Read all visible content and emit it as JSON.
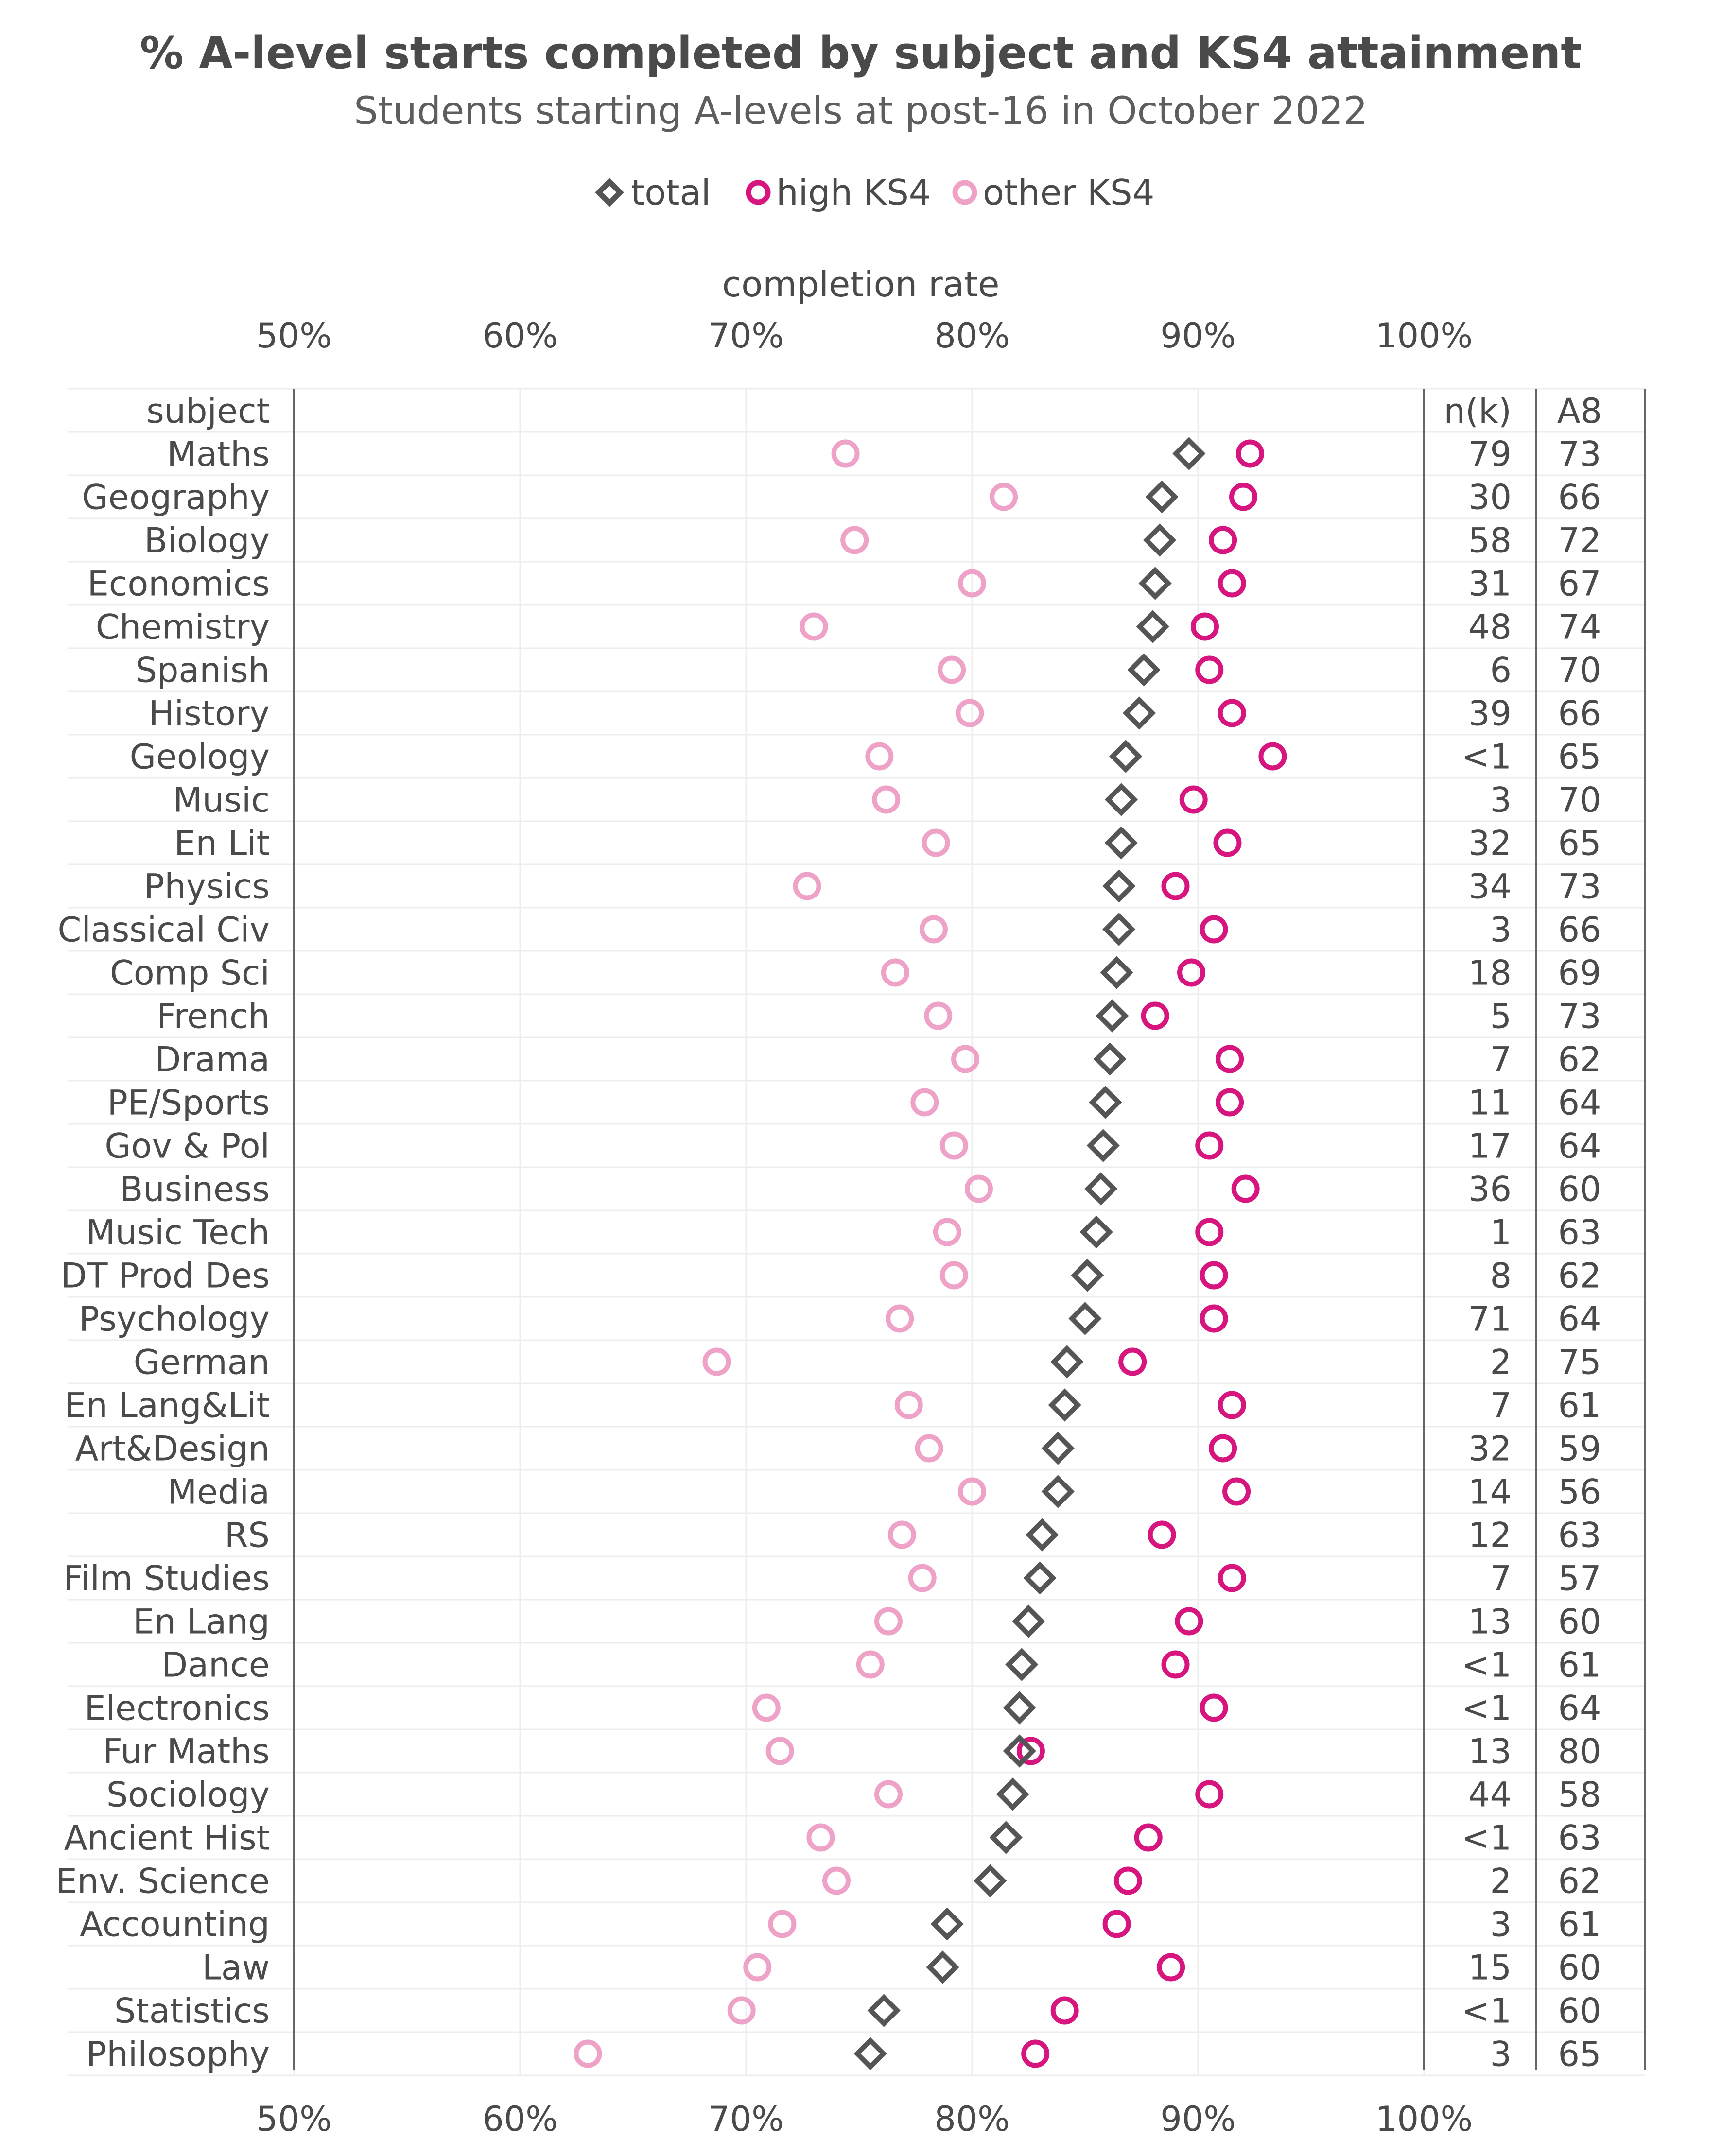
{
  "chart_data": {
    "type": "scatter",
    "title": "% A-level starts completed by subject and KS4 attainment",
    "subtitle": "Students starting A-levels at post-16 in October 2022",
    "axis_label": "completion rate",
    "x_ticks": [
      "50%",
      "60%",
      "70%",
      "80%",
      "90%",
      "100%"
    ],
    "x_tick_values": [
      50,
      60,
      70,
      80,
      90,
      100
    ],
    "xlim": [
      50,
      100
    ],
    "grid": true,
    "legend_position": "top",
    "legend": [
      {
        "key": "total",
        "label": "total",
        "marker": "diamond",
        "color": "#555555"
      },
      {
        "key": "high",
        "label": "high KS4",
        "marker": "circle",
        "color": "#d6157f"
      },
      {
        "key": "other",
        "label": "other KS4",
        "marker": "circle",
        "color": "#eea2c8"
      }
    ],
    "columns": {
      "subject": "subject",
      "n": "n(k)",
      "a8": "A8"
    },
    "rows": [
      {
        "subject": "Maths",
        "total": 89.6,
        "high": 92.3,
        "other": 74.4,
        "n": "79",
        "a8": "73"
      },
      {
        "subject": "Geography",
        "total": 88.4,
        "high": 92.0,
        "other": 81.4,
        "n": "30",
        "a8": "66"
      },
      {
        "subject": "Biology",
        "total": 88.3,
        "high": 91.1,
        "other": 74.8,
        "n": "58",
        "a8": "72"
      },
      {
        "subject": "Economics",
        "total": 88.1,
        "high": 91.5,
        "other": 80.0,
        "n": "31",
        "a8": "67"
      },
      {
        "subject": "Chemistry",
        "total": 88.0,
        "high": 90.3,
        "other": 73.0,
        "n": "48",
        "a8": "74"
      },
      {
        "subject": "Spanish",
        "total": 87.6,
        "high": 90.5,
        "other": 79.1,
        "n": "6",
        "a8": "70"
      },
      {
        "subject": "History",
        "total": 87.4,
        "high": 91.5,
        "other": 79.9,
        "n": "39",
        "a8": "66"
      },
      {
        "subject": "Geology",
        "total": 86.8,
        "high": 93.3,
        "other": 75.9,
        "n": "<1",
        "a8": "65"
      },
      {
        "subject": "Music",
        "total": 86.6,
        "high": 89.8,
        "other": 76.2,
        "n": "3",
        "a8": "70"
      },
      {
        "subject": "En Lit",
        "total": 86.6,
        "high": 91.3,
        "other": 78.4,
        "n": "32",
        "a8": "65"
      },
      {
        "subject": "Physics",
        "total": 86.5,
        "high": 89.0,
        "other": 72.7,
        "n": "34",
        "a8": "73"
      },
      {
        "subject": "Classical Civ",
        "total": 86.5,
        "high": 90.7,
        "other": 78.3,
        "n": "3",
        "a8": "66"
      },
      {
        "subject": "Comp Sci",
        "total": 86.4,
        "high": 89.7,
        "other": 76.6,
        "n": "18",
        "a8": "69"
      },
      {
        "subject": "French",
        "total": 86.2,
        "high": 88.1,
        "other": 78.5,
        "n": "5",
        "a8": "73"
      },
      {
        "subject": "Drama",
        "total": 86.1,
        "high": 91.4,
        "other": 79.7,
        "n": "7",
        "a8": "62"
      },
      {
        "subject": "PE/Sports",
        "total": 85.9,
        "high": 91.4,
        "other": 77.9,
        "n": "11",
        "a8": "64"
      },
      {
        "subject": "Gov & Pol",
        "total": 85.8,
        "high": 90.5,
        "other": 79.2,
        "n": "17",
        "a8": "64"
      },
      {
        "subject": "Business",
        "total": 85.7,
        "high": 92.1,
        "other": 80.3,
        "n": "36",
        "a8": "60"
      },
      {
        "subject": "Music Tech",
        "total": 85.5,
        "high": 90.5,
        "other": 78.9,
        "n": "1",
        "a8": "63"
      },
      {
        "subject": "DT Prod Des",
        "total": 85.1,
        "high": 90.7,
        "other": 79.2,
        "n": "8",
        "a8": "62"
      },
      {
        "subject": "Psychology",
        "total": 85.0,
        "high": 90.7,
        "other": 76.8,
        "n": "71",
        "a8": "64"
      },
      {
        "subject": "German",
        "total": 84.2,
        "high": 87.1,
        "other": 68.7,
        "n": "2",
        "a8": "75"
      },
      {
        "subject": "En Lang&Lit",
        "total": 84.1,
        "high": 91.5,
        "other": 77.2,
        "n": "7",
        "a8": "61"
      },
      {
        "subject": "Art&Design",
        "total": 83.8,
        "high": 91.1,
        "other": 78.1,
        "n": "32",
        "a8": "59"
      },
      {
        "subject": "Media",
        "total": 83.8,
        "high": 91.7,
        "other": 80.0,
        "n": "14",
        "a8": "56"
      },
      {
        "subject": "RS",
        "total": 83.1,
        "high": 88.4,
        "other": 76.9,
        "n": "12",
        "a8": "63"
      },
      {
        "subject": "Film Studies",
        "total": 83.0,
        "high": 91.5,
        "other": 77.8,
        "n": "7",
        "a8": "57"
      },
      {
        "subject": "En Lang",
        "total": 82.5,
        "high": 89.6,
        "other": 76.3,
        "n": "13",
        "a8": "60"
      },
      {
        "subject": "Dance",
        "total": 82.2,
        "high": 89.0,
        "other": 75.5,
        "n": "<1",
        "a8": "61"
      },
      {
        "subject": "Electronics",
        "total": 82.1,
        "high": 90.7,
        "other": 70.9,
        "n": "<1",
        "a8": "64"
      },
      {
        "subject": "Fur Maths",
        "total": 82.1,
        "high": 82.6,
        "other": 71.5,
        "n": "13",
        "a8": "80"
      },
      {
        "subject": "Sociology",
        "total": 81.8,
        "high": 90.5,
        "other": 76.3,
        "n": "44",
        "a8": "58"
      },
      {
        "subject": "Ancient Hist",
        "total": 81.5,
        "high": 87.8,
        "other": 73.3,
        "n": "<1",
        "a8": "63"
      },
      {
        "subject": "Env. Science",
        "total": 80.8,
        "high": 86.9,
        "other": 74.0,
        "n": "2",
        "a8": "62"
      },
      {
        "subject": "Accounting",
        "total": 78.9,
        "high": 86.4,
        "other": 71.6,
        "n": "3",
        "a8": "61"
      },
      {
        "subject": "Law",
        "total": 78.7,
        "high": 88.8,
        "other": 70.5,
        "n": "15",
        "a8": "60"
      },
      {
        "subject": "Statistics",
        "total": 76.1,
        "high": 84.1,
        "other": 69.8,
        "n": "<1",
        "a8": "60"
      },
      {
        "subject": "Philosophy",
        "total": 75.5,
        "high": 82.8,
        "other": 63.0,
        "n": "3",
        "a8": "65"
      }
    ]
  }
}
